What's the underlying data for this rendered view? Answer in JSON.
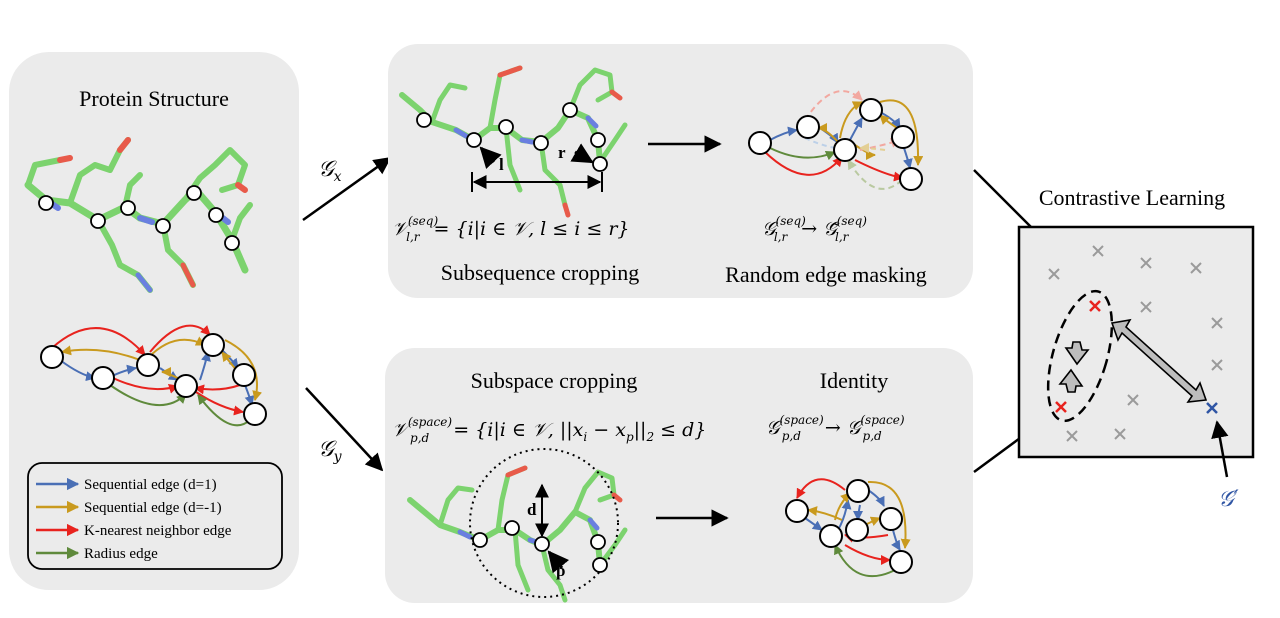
{
  "left_panel": {
    "title": "Protein Structure",
    "legend": [
      {
        "label": "Sequential edge (d=1)",
        "color": "#4a6fb5"
      },
      {
        "label": "Sequential edge (d=-1)",
        "color": "#c99a1e"
      },
      {
        "label": "K-nearest neighbor edge",
        "color": "#e8231e"
      },
      {
        "label": "Radius edge",
        "color": "#5f8a3c"
      }
    ]
  },
  "arrows": {
    "gx": "𝒢",
    "gx_sub": "x",
    "gy": "𝒢",
    "gy_sub": "y"
  },
  "top_panel": {
    "crop_caption": "Subsequence cropping",
    "crop_formula_lhs": "𝒱",
    "crop_formula_sup": "(seq)",
    "crop_formula_sub": "l,r",
    "crop_formula_rhs": "= {i|i ∈ 𝒱, l ≤ i ≤ r}",
    "label_l": "l",
    "label_r": "r",
    "mask_caption": "Random edge masking",
    "mask_formula_a": "𝒢",
    "mask_formula_sup": "(seq)",
    "mask_formula_sub": "l,r",
    "mask_formula_arrow": "→",
    "mask_formula_b": "𝒢̃"
  },
  "bottom_panel": {
    "crop_caption": "Subspace cropping",
    "crop_formula_lhs": "𝒱",
    "crop_formula_sup": "(space)",
    "crop_formula_sub": "p,d",
    "crop_formula_rhs": "= {i|i ∈ 𝒱, ||x",
    "crop_formula_rhs_sub": "i",
    "crop_formula_rhs2": " − x",
    "crop_formula_rhs_sub2": "p",
    "crop_formula_rhs3": "||",
    "crop_formula_rhs_sub3": "2",
    "crop_formula_rhs4": " ≤ d}",
    "label_d": "d",
    "label_p": "p",
    "identity_caption": "Identity",
    "identity_formula_a": "𝒢",
    "identity_formula_sup": "(space)",
    "identity_formula_sub": "p,d",
    "identity_formula_arrow": "→",
    "identity_formula_b": "𝒢"
  },
  "right_panel": {
    "title": "Contrastive Learning",
    "g_prime": "𝒢′",
    "neg_color": "#9a9a9a",
    "pos_color": "#e8231e",
    "other_color": "#2f55a4"
  }
}
